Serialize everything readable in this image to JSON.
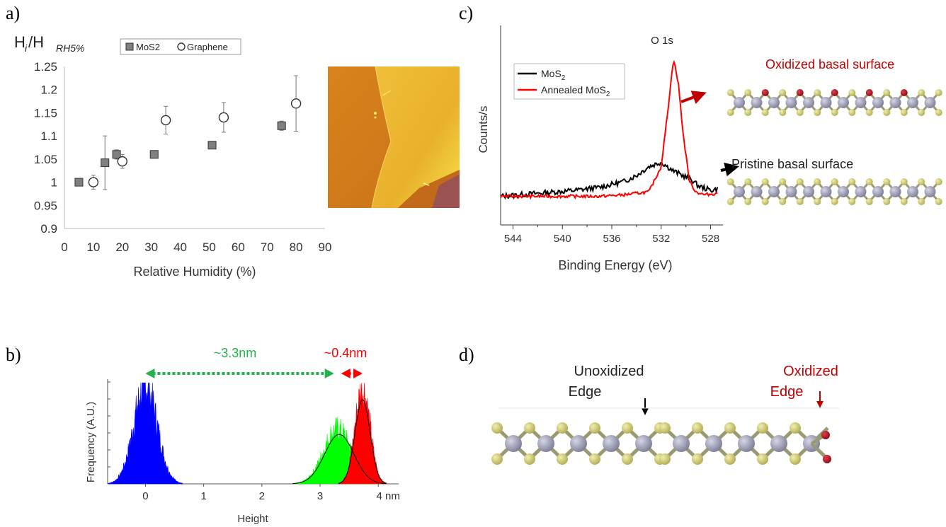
{
  "panel_labels": {
    "a": "a)",
    "b": "b)",
    "c": "c)",
    "d": "d)"
  },
  "chart_data": [
    {
      "panel": "a",
      "type": "scatter",
      "ylabel_main": "H",
      "ylabel_sub_i": "i",
      "ylabel_slash": "/H",
      "ylabel_sub_rh": "RH5%",
      "xlabel": "Relative Humidity (%)",
      "xlim": [
        0,
        90
      ],
      "ylim": [
        0.9,
        1.25
      ],
      "xticks": [
        "0",
        "10",
        "20",
        "30",
        "40",
        "50",
        "60",
        "70",
        "80",
        "90"
      ],
      "yticks": [
        "0.9",
        "0.95",
        "1",
        "1.05",
        "1.1",
        "1.15",
        "1.2",
        "1.25"
      ],
      "legend_position": "top",
      "grid": false,
      "series": [
        {
          "name": "MoS2",
          "marker": "square",
          "color": "#808080",
          "x": [
            5,
            14,
            18,
            31,
            51,
            75
          ],
          "y": [
            1.0,
            1.042,
            1.06,
            1.06,
            1.08,
            1.122
          ],
          "err": [
            0,
            0.058,
            0.01,
            0.005,
            0.005,
            0.01
          ]
        },
        {
          "name": "Graphene",
          "marker": "circle-open",
          "color": "#333333",
          "x": [
            10,
            20,
            35,
            55,
            80
          ],
          "y": [
            1.0,
            1.045,
            1.134,
            1.14,
            1.17
          ],
          "err": [
            0.015,
            0.015,
            0.03,
            0.032,
            0.06
          ]
        }
      ]
    },
    {
      "panel": "b",
      "type": "area",
      "xlabel": "Height",
      "ylabel": "Frequency (A.U.)",
      "xlim": [
        -0.65,
        4.35
      ],
      "xticks": [
        "0",
        "1",
        "2",
        "3",
        "4 nm"
      ],
      "grid": false,
      "series": [
        {
          "name": "",
          "color": "#0000ff",
          "center": 0.0,
          "width": 0.2,
          "amplitude": 1.0
        },
        {
          "name": "",
          "color": "#00ff00",
          "center": 3.3,
          "width": 0.24,
          "amplitude": 0.55
        },
        {
          "name": "",
          "color": "#ff0000",
          "center": 3.73,
          "width": 0.13,
          "amplitude": 0.95
        }
      ],
      "fit_curves": [
        {
          "center": 3.33,
          "width": 0.25,
          "amplitude": 0.5
        },
        {
          "center": 3.73,
          "width": 0.13,
          "amplitude": 0.85
        }
      ],
      "annotations": [
        {
          "text": "~3.3nm",
          "color": "#22b14c",
          "from": 0.0,
          "to": 3.3
        },
        {
          "text": "~0.4nm",
          "color": "#ff0000",
          "from": 3.3,
          "to": 3.73
        }
      ]
    },
    {
      "panel": "c",
      "type": "line",
      "xlabel": "Binding Energy (eV)",
      "ylabel": "Counts/s",
      "xlim": [
        545,
        527
      ],
      "xticks": [
        "544",
        "540",
        "536",
        "532",
        "528"
      ],
      "peak_label": "O 1s",
      "legend_position": "top-left",
      "grid": false,
      "series": [
        {
          "name": "MoS",
          "name_sub": "2",
          "color": "#000000",
          "x": [
            545,
            542,
            539,
            537,
            535,
            534,
            533,
            532,
            531,
            530,
            529.5,
            529,
            528,
            527.4
          ],
          "y": [
            0.05,
            0.07,
            0.09,
            0.11,
            0.15,
            0.19,
            0.25,
            0.28,
            0.22,
            0.18,
            0.16,
            0.12,
            0.09,
            0.1
          ]
        },
        {
          "name": "Annealed MoS",
          "name_sub": "2",
          "color": "#ff0000",
          "x": [
            545,
            542,
            539,
            537,
            535,
            533,
            532,
            531.5,
            531,
            530.6,
            530.2,
            529.7,
            529.2,
            528.5,
            527.4
          ],
          "y": [
            0.05,
            0.05,
            0.05,
            0.05,
            0.06,
            0.08,
            0.25,
            0.6,
            0.98,
            0.8,
            0.45,
            0.15,
            0.08,
            0.06,
            0.07
          ]
        }
      ]
    }
  ],
  "structures": {
    "oxidized_label": "Oxidized basal surface",
    "pristine_label": "Pristine basal surface",
    "unoxidized_edge_line1": "Unoxidized",
    "unoxidized_edge_line2": "Edge",
    "oxidized_edge_line1": "Oxidized",
    "oxidized_edge_line2": "Edge",
    "colors": {
      "mo": "#8e8ea6",
      "s": "#c8c46a",
      "o": "#a0101c",
      "label_red": "#c00000"
    }
  }
}
